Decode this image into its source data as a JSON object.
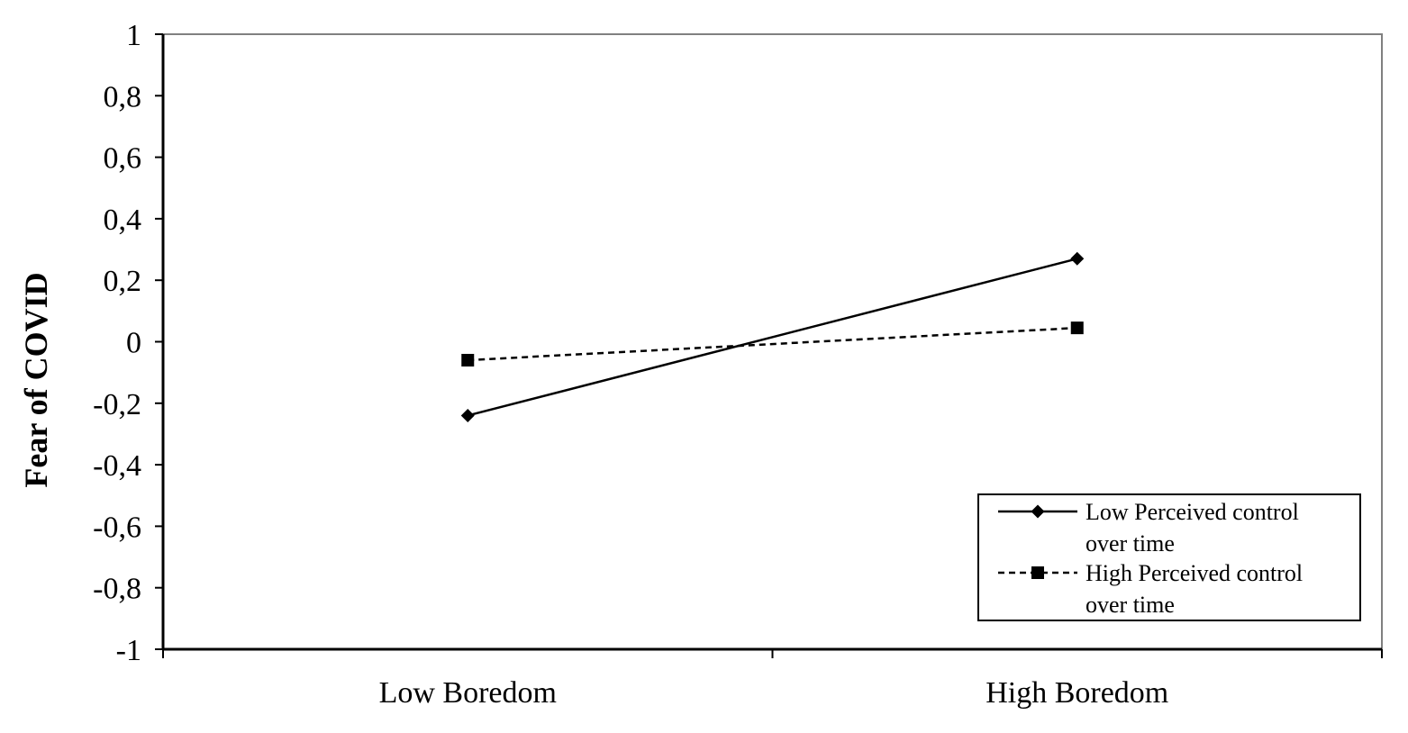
{
  "chart_data": {
    "type": "line",
    "title": "",
    "xlabel": "",
    "ylabel": "Fear of COVID",
    "categories": [
      "Low Boredom",
      "High Boredom"
    ],
    "ylim": [
      -1,
      1
    ],
    "yticks": [
      "1",
      "0,8",
      "0,6",
      "0,4",
      "0,2",
      "0",
      "-0,2",
      "-0,4",
      "-0,6",
      "-0,8",
      "-1"
    ],
    "ytick_values": [
      1,
      0.8,
      0.6,
      0.4,
      0.2,
      0,
      -0.2,
      -0.4,
      -0.6,
      -0.8,
      -1
    ],
    "grid": false,
    "legend_position": "bottom-right",
    "series": [
      {
        "name_lines": [
          "Low Perceived control",
          "over time"
        ],
        "values": [
          -0.24,
          0.27
        ],
        "marker": "diamond",
        "line_style": "solid",
        "color": "#000000"
      },
      {
        "name_lines": [
          "High Perceived control",
          "over time"
        ],
        "values": [
          -0.06,
          0.045
        ],
        "marker": "square",
        "line_style": "dashed",
        "color": "#000000"
      }
    ]
  }
}
